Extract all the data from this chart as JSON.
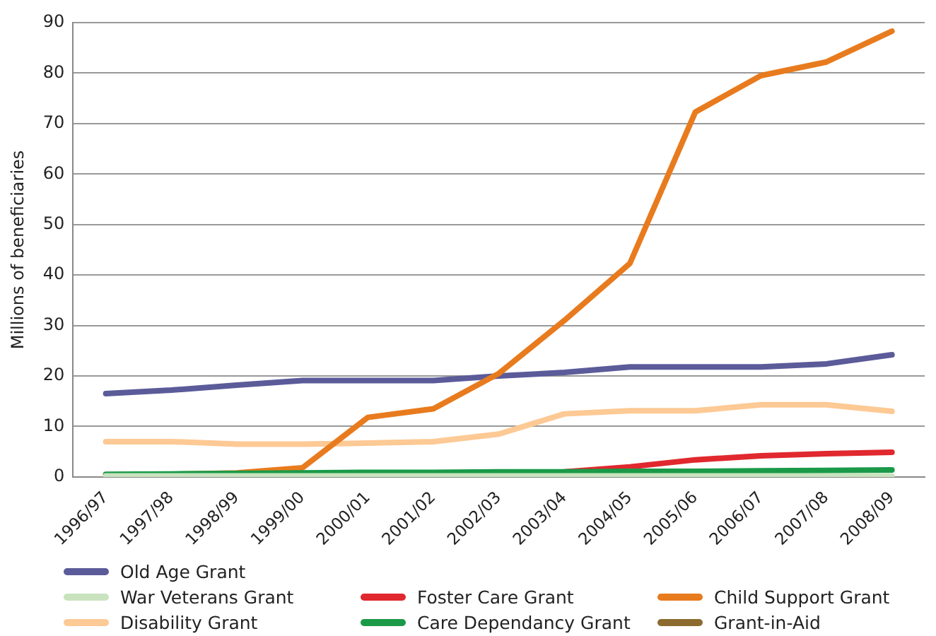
{
  "chart_data": {
    "type": "line",
    "ylabel": "Millions of beneficiaries",
    "categories": [
      "1996/97",
      "1997/98",
      "1998/99",
      "1999/00",
      "2000/01",
      "2001/02",
      "2002/03",
      "2003/04",
      "2004/05",
      "2005/06",
      "2006/07",
      "2007/08",
      "2008/09"
    ],
    "series": [
      {
        "name": "Old Age Grant",
        "color": "#5b5b9a",
        "values": [
          16.5,
          17.2,
          18.2,
          19.1,
          19.1,
          19.1,
          20,
          20.7,
          21.8,
          21.8,
          21.8,
          22.4,
          24.2
        ]
      },
      {
        "name": "War Veterans Grant",
        "color": "#c9e3bf",
        "values": [
          0.2,
          0.2,
          0.2,
          0.2,
          0.2,
          0.2,
          0.2,
          0.2,
          0.2,
          0.2,
          0.2,
          0.2,
          0.2
        ]
      },
      {
        "name": "Disability Grant",
        "color": "#fdc994",
        "values": [
          7,
          7,
          6.5,
          6.5,
          6.7,
          7,
          8.5,
          12.5,
          13.1,
          13.1,
          14.3,
          14.3,
          13
        ]
      },
      {
        "name": "Foster Care Grant",
        "color": "#e0282e",
        "values": [
          null,
          null,
          null,
          null,
          null,
          null,
          null,
          1,
          2,
          3.4,
          4.2,
          4.6,
          4.9
        ]
      },
      {
        "name": "Care Dependancy Grant",
        "color": "#1a9a48",
        "values": [
          0.5,
          0.6,
          0.7,
          0.8,
          0.9,
          0.9,
          1,
          1,
          1.1,
          1.1,
          1.2,
          1.3,
          1.4
        ]
      },
      {
        "name": "Child Support Grant",
        "color": "#e87b1e",
        "values": [
          0.4,
          0.5,
          0.8,
          1.8,
          11.8,
          13.5,
          20.5,
          31,
          42.3,
          72.3,
          79.5,
          82.2,
          88.3
        ]
      },
      {
        "name": "Grant-in-Aid",
        "color": "#8b6b2e",
        "values": [
          null,
          null,
          null,
          null,
          null,
          null,
          null,
          null,
          null,
          null,
          null,
          null,
          null
        ]
      }
    ],
    "ylim": [
      0,
      90
    ],
    "yticks": [
      0,
      10,
      20,
      30,
      40,
      50,
      60,
      70,
      80,
      90
    ],
    "grid": "y",
    "legend": "bottom",
    "marker": "none",
    "line_style": "solid"
  }
}
